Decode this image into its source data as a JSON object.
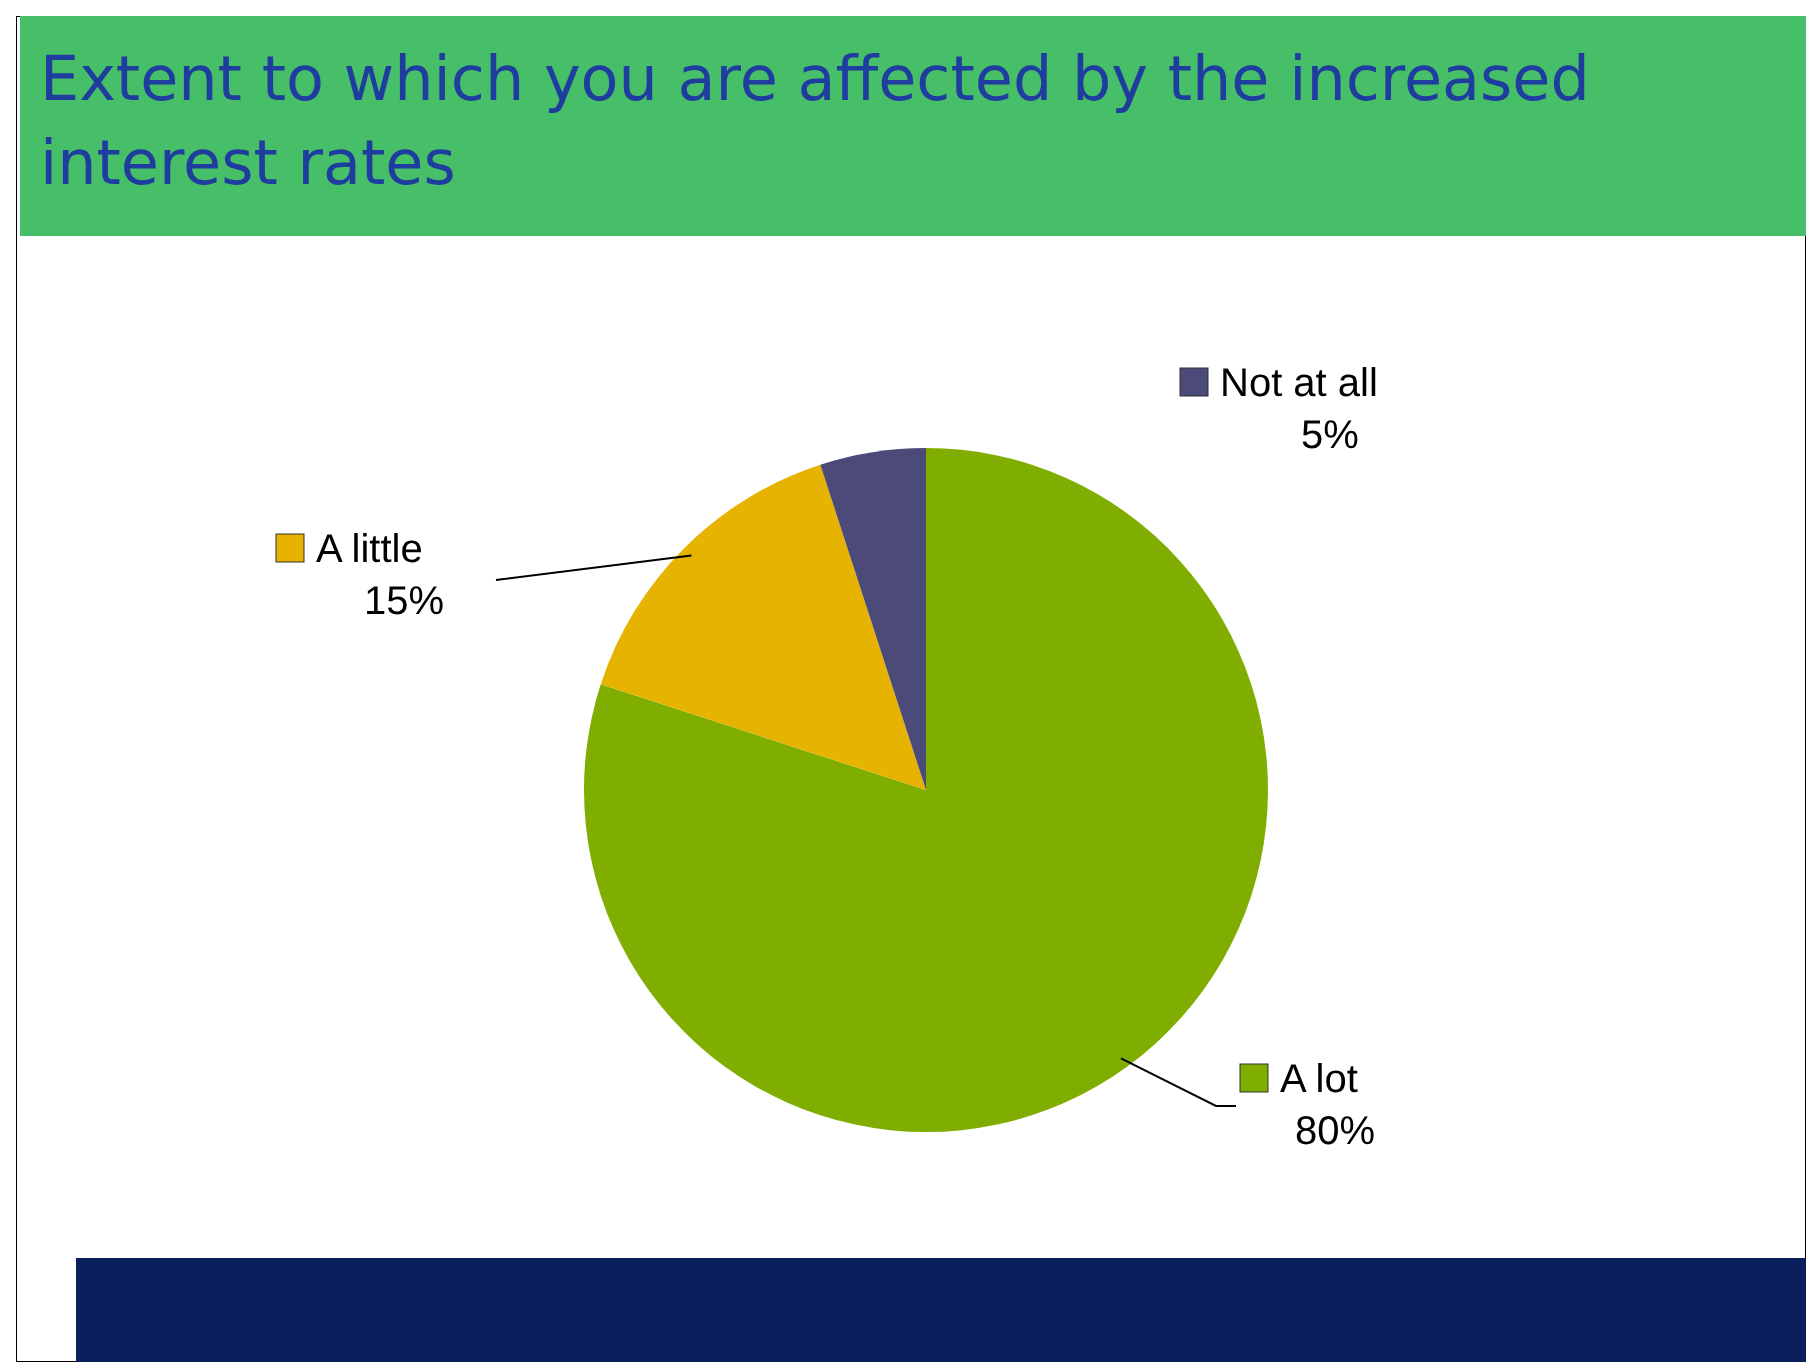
{
  "chart_data": {
    "type": "pie",
    "title": "Extent to which you are affected by the increased interest rates",
    "categories": [
      "A lot",
      "A little",
      "Not at all"
    ],
    "values": [
      80,
      15,
      5
    ],
    "colors": [
      "#7fae00",
      "#e6b400",
      "#4b4a78"
    ],
    "value_labels": [
      "80%",
      "15%",
      "5%"
    ],
    "legend": "top left"
  }
}
